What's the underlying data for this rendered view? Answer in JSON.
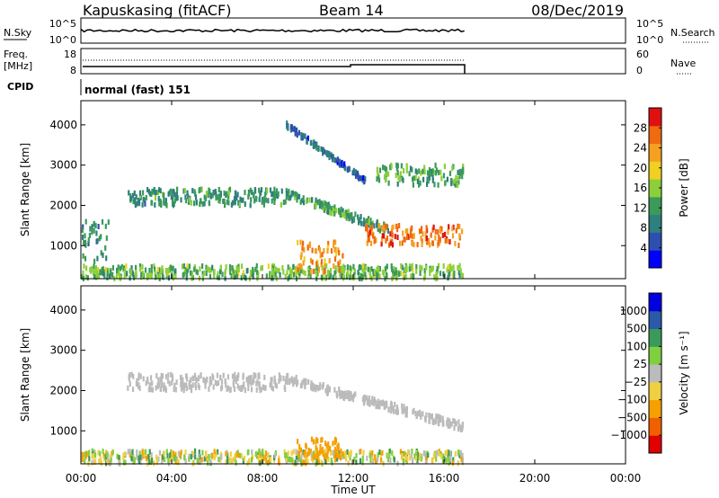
{
  "header": {
    "title": "Kapuskasing (fitACF)",
    "beam": "Beam 14",
    "date": "08/Dec/2019"
  },
  "panels": {
    "nsky": {
      "left_label": "N.Sky",
      "right_label": "N.Search",
      "ticks_left": [
        "10^5",
        "10^0"
      ],
      "ticks_right": [
        "10^5",
        "10^0"
      ]
    },
    "freq": {
      "left_label_1": "Freq.",
      "left_label_2": "[MHz]",
      "ticks_left": [
        "18",
        "8"
      ],
      "ticks_right": [
        "60",
        "0"
      ],
      "right_label": "Nave"
    },
    "cpid": {
      "label": "CPID",
      "value": "normal (fast) 151"
    }
  },
  "x_axis": {
    "label": "Time UT",
    "ticks": [
      "00:00",
      "04:00",
      "08:00",
      "12:00",
      "16:00",
      "20:00",
      "00:00"
    ]
  },
  "colors": {
    "power": [
      "#0000ff",
      "#2d4fb0",
      "#2f7f7f",
      "#3a9a5a",
      "#8ccf3a",
      "#f0d020",
      "#f5a020",
      "#f06a10",
      "#e01010"
    ],
    "velocity": [
      "#e00000",
      "#f06000",
      "#f5a000",
      "#f0d040",
      "#bbbbbb",
      "#7fd040",
      "#3a9a5a",
      "#2a5aa8",
      "#0000e0"
    ]
  },
  "chart_data": [
    {
      "type": "heatmap",
      "panel": "power",
      "ylabel": "Slant Range [km]",
      "xlabel": "",
      "x_range_hours": [
        0,
        24
      ],
      "ylim": [
        180,
        4600
      ],
      "y_ticks": [
        1000,
        2000,
        3000,
        4000
      ],
      "colorbar": {
        "label": "Power [dB]",
        "ticks": [
          4,
          8,
          12,
          16,
          20,
          24,
          28
        ],
        "range": [
          0,
          32
        ]
      },
      "features": [
        {
          "name": "near-range clutter",
          "t_start": 0.0,
          "t_end": 16.9,
          "r_start": 180,
          "r_end": 500,
          "level": 14
        },
        {
          "name": "early band",
          "t_start": 0.0,
          "t_end": 1.2,
          "r_start": 600,
          "r_end": 1600,
          "level": 10
        },
        {
          "name": "main band",
          "t_start": 2.0,
          "t_end": 9.0,
          "r_start": 2000,
          "r_end": 2400,
          "level": 11
        },
        {
          "name": "descending band",
          "t_start": 9.0,
          "t_end": 13.5,
          "r_start": 1400,
          "r_end": 2300,
          "level": 12
        },
        {
          "name": "strong echo",
          "t_start": 12.5,
          "t_end": 16.8,
          "r_start": 1000,
          "r_end": 1500,
          "level": 26
        },
        {
          "name": "afternoon echo",
          "t_start": 9.5,
          "t_end": 11.5,
          "r_start": 350,
          "r_end": 1100,
          "level": 24
        },
        {
          "name": "upper diagonal",
          "t_start": 9.0,
          "t_end": 12.5,
          "r_start": 2600,
          "r_end": 4000,
          "level": 7
        },
        {
          "name": "far range",
          "t_start": 13.0,
          "t_end": 16.8,
          "r_start": 2500,
          "r_end": 3000,
          "level": 13
        }
      ]
    },
    {
      "type": "heatmap",
      "panel": "velocity",
      "ylabel": "Slant Range [km]",
      "xlabel": "Time UT",
      "x_range_hours": [
        0,
        24
      ],
      "ylim": [
        180,
        4600
      ],
      "y_ticks": [
        1000,
        2000,
        3000,
        4000
      ],
      "colorbar": {
        "label": "Velocity [m s⁻¹]",
        "ticks": [
          "1000",
          "500",
          "100",
          "25",
          "−25",
          "−100",
          "−500",
          "−1000"
        ]
      },
      "features": [
        {
          "name": "near-range clutter",
          "t_start": 0.0,
          "t_end": 16.9,
          "r_start": 180,
          "r_end": 500,
          "level": 0
        },
        {
          "name": "main band",
          "t_start": 2.0,
          "t_end": 9.0,
          "r_start": 2000,
          "r_end": 2400,
          "level": 0
        },
        {
          "name": "descending band",
          "t_start": 9.0,
          "t_end": 16.8,
          "r_start": 1100,
          "r_end": 2300,
          "level": 0
        },
        {
          "name": "afternoon echo",
          "t_start": 9.5,
          "t_end": 11.5,
          "r_start": 350,
          "r_end": 800,
          "level": -120
        }
      ]
    }
  ]
}
